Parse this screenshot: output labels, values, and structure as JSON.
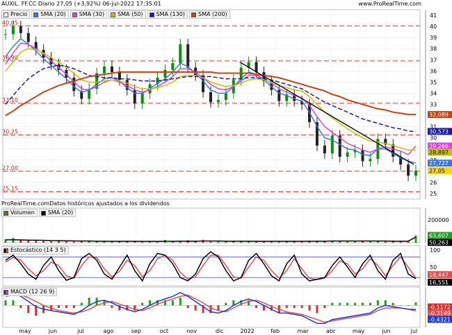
{
  "header": {
    "title": "AUXIL. FF.CC Diario 27,05 (+3,92%) 06-jul-2022 17:35:01",
    "source": "www.ProRealTime.com",
    "note": "ProRealTime.comDatos históricos ajustados a los dividendos"
  },
  "colors": {
    "price_up": "#0a8f0a",
    "price_down": "#222222",
    "sma20": "#3a78e0",
    "sma30": "#e040e0",
    "sma50": "#c8c000",
    "sma130": "#1a1aaa",
    "sma200": "#cc4010",
    "hline": "#e03030",
    "trend": "#000000",
    "volume": "#000000",
    "stoch_k": "#000000",
    "stoch_d": "#e05050",
    "macd": "#1a3adb",
    "macd_signal": "#e05050",
    "hist_up": "#20a020",
    "hist_down": "#d03030"
  },
  "chart_data": [
    {
      "type": "line",
      "panel": "price",
      "legend": [
        "Precio",
        "SMA (20)",
        "SMA (30)",
        "SMA (50)",
        "SMA (130)",
        "SMA (200)"
      ],
      "x_ticks": [
        "may",
        "jun",
        "jul",
        "ago",
        "sep",
        "oct",
        "nov",
        "dic",
        "2022",
        "feb",
        "mar",
        "abr",
        "may",
        "jun",
        "jul"
      ],
      "y_ticks": [
        25,
        26,
        27,
        28,
        29,
        30,
        31,
        32,
        33,
        34,
        35,
        36,
        37,
        38,
        39,
        40,
        41
      ],
      "ylim": [
        24.5,
        41.5
      ],
      "grid": true,
      "horizontal_levels": [
        {
          "label": "40,05",
          "value": 40.05
        },
        {
          "label": "36,90",
          "value": 36.9
        },
        {
          "label": "33,10",
          "value": 33.1
        },
        {
          "label": "30,25",
          "value": 30.25
        },
        {
          "label": "27,00",
          "value": 27.0
        },
        {
          "label": "25,15",
          "value": 25.15
        }
      ],
      "last_values": [
        {
          "label": "32,089",
          "value": 32.089,
          "series": "SMA (200)"
        },
        {
          "label": "30,573",
          "value": 30.573,
          "series": "SMA (130)"
        },
        {
          "label": "29,266",
          "value": 29.266,
          "series": "SMA (30)"
        },
        {
          "label": "28,897",
          "value": 28.897,
          "series": "SMA (50)"
        },
        {
          "label": "27,727",
          "value": 27.727,
          "series": "SMA (20)"
        },
        {
          "label": "27,05",
          "value": 27.05,
          "series": "Precio"
        }
      ],
      "trendline": {
        "from": [
          0.568,
          36.8
        ],
        "to": [
          0.985,
          27.6
        ]
      },
      "series": [
        {
          "name": "Precio",
          "key": "price",
          "values": [
            39.3,
            40.0,
            39.4,
            38.6,
            37.9,
            37.2,
            36.6,
            36.1,
            35.4,
            34.2,
            33.5,
            34.4,
            35.8,
            36.4,
            35.9,
            35.2,
            34.3,
            33.1,
            34.0,
            34.8,
            35.4,
            36.1,
            36.7,
            38.4,
            36.3,
            35.6,
            34.1,
            33.2,
            33.4,
            34.0,
            35.2,
            36.3,
            36.8,
            35.9,
            35.1,
            34.3,
            33.3,
            33.9,
            33.3,
            33.0,
            31.4,
            29.3,
            28.6,
            30.2,
            28.3,
            28.7,
            28.9,
            27.9,
            28.1,
            29.9,
            29.4,
            28.3,
            27.6,
            26.6,
            27.05
          ]
        },
        {
          "name": "SMA (20)",
          "key": "sma20",
          "values": [
            37.3,
            38.2,
            38.9,
            38.4,
            37.8,
            37.1,
            36.5,
            35.9,
            35.3,
            34.6,
            34.1,
            34.3,
            34.8,
            35.3,
            35.4,
            35.1,
            34.5,
            34.0,
            34.0,
            34.4,
            34.9,
            35.3,
            35.9,
            36.7,
            36.4,
            35.8,
            35.1,
            34.3,
            34.0,
            34.0,
            34.6,
            35.3,
            35.9,
            35.7,
            35.2,
            34.6,
            34.0,
            33.8,
            33.5,
            33.3,
            32.3,
            31.0,
            30.0,
            29.8,
            29.4,
            29.0,
            28.9,
            28.5,
            28.4,
            29.0,
            29.0,
            28.6,
            28.2,
            27.9,
            27.727
          ]
        },
        {
          "name": "SMA (30)",
          "key": "sma30",
          "values": [
            36.6,
            37.6,
            38.5,
            38.4,
            38.0,
            37.5,
            36.9,
            36.3,
            35.7,
            35.0,
            34.4,
            34.3,
            34.6,
            35.0,
            35.2,
            35.0,
            34.7,
            34.3,
            34.1,
            34.3,
            34.6,
            35.0,
            35.5,
            36.2,
            36.2,
            35.9,
            35.4,
            34.8,
            34.4,
            34.3,
            34.6,
            35.1,
            35.6,
            35.6,
            35.3,
            34.9,
            34.4,
            34.1,
            33.8,
            33.6,
            32.9,
            31.9,
            31.0,
            30.5,
            30.0,
            29.5,
            29.2,
            28.9,
            28.7,
            29.0,
            29.2,
            29.0,
            28.8,
            28.5,
            29.266
          ]
        },
        {
          "name": "SMA (50)",
          "key": "sma50",
          "values": [
            36.0,
            36.8,
            37.7,
            38.0,
            37.9,
            37.6,
            37.2,
            36.8,
            36.3,
            35.8,
            35.2,
            35.0,
            35.0,
            35.1,
            35.2,
            35.1,
            34.9,
            34.6,
            34.4,
            34.4,
            34.5,
            34.7,
            35.0,
            35.5,
            35.6,
            35.6,
            35.4,
            35.0,
            34.8,
            34.6,
            34.7,
            34.9,
            35.2,
            35.3,
            35.2,
            35.0,
            34.7,
            34.5,
            34.3,
            34.2,
            33.7,
            33.0,
            32.3,
            31.8,
            31.3,
            30.8,
            30.4,
            30.0,
            29.7,
            29.6,
            29.5,
            29.3,
            29.1,
            28.9,
            28.897
          ]
        },
        {
          "name": "SMA (130)",
          "key": "sma130",
          "values": [
            33.0,
            33.8,
            34.6,
            35.3,
            35.8,
            36.2,
            36.4,
            36.5,
            36.4,
            36.2,
            35.9,
            35.6,
            35.5,
            35.4,
            35.4,
            35.3,
            35.3,
            35.2,
            35.1,
            35.1,
            35.1,
            35.2,
            35.3,
            35.4,
            35.5,
            35.5,
            35.5,
            35.5,
            35.4,
            35.3,
            35.3,
            35.3,
            35.4,
            35.4,
            35.3,
            35.2,
            35.0,
            34.8,
            34.6,
            34.4,
            34.0,
            33.6,
            33.2,
            32.9,
            32.6,
            32.3,
            32.0,
            31.7,
            31.5,
            31.3,
            31.1,
            30.9,
            30.8,
            30.6,
            30.573
          ]
        },
        {
          "name": "SMA (200)",
          "key": "sma200",
          "values": [
            32.0,
            32.4,
            32.9,
            33.3,
            33.7,
            34.1,
            34.4,
            34.7,
            34.9,
            35.1,
            35.3,
            35.5,
            35.6,
            35.7,
            35.8,
            35.9,
            35.9,
            35.9,
            35.9,
            35.9,
            35.9,
            35.9,
            35.9,
            35.9,
            35.9,
            35.9,
            35.9,
            35.9,
            35.8,
            35.8,
            35.8,
            35.8,
            35.8,
            35.7,
            35.6,
            35.5,
            35.4,
            35.2,
            35.0,
            34.8,
            34.6,
            34.4,
            34.2,
            33.9,
            33.7,
            33.4,
            33.2,
            33.0,
            32.8,
            32.6,
            32.5,
            32.3,
            32.2,
            32.1,
            32.089
          ]
        }
      ]
    },
    {
      "type": "bar",
      "panel": "volume",
      "legend": [
        "Volumen",
        "SMA (20)"
      ],
      "y_ticks": [
        200000
      ],
      "ylim": [
        0,
        230000
      ],
      "last_values": [
        {
          "label": "63,607",
          "value": 63607,
          "series": "Volumen"
        },
        {
          "label": "50,263",
          "value": 50263,
          "series": "SMA (20)"
        }
      ],
      "values": [
        30000,
        42000,
        25000,
        18000,
        22000,
        15000,
        12000,
        20000,
        14000,
        9000,
        11000,
        16000,
        10000,
        13000,
        8000,
        12000,
        9000,
        14000,
        10000,
        12000,
        8000,
        24000,
        15000,
        18000,
        22000,
        12000,
        26000,
        10000,
        14000,
        9000,
        18000,
        12000,
        16000,
        9000,
        11000,
        15000,
        8000,
        13000,
        18000,
        12000,
        16000,
        10000,
        14000,
        20000,
        15000,
        18000,
        12000,
        14000,
        11000,
        16000,
        13000,
        9000,
        12000,
        10000,
        63607
      ],
      "series": [
        {
          "name": "SMA (20)",
          "values": [
            26000,
            26000,
            25000,
            23000,
            22000,
            21000,
            19000,
            18000,
            17000,
            16000,
            15000,
            15000,
            14000,
            14000,
            13000,
            13000,
            13000,
            13000,
            12000,
            12000,
            12000,
            13000,
            13000,
            14000,
            14000,
            14000,
            15000,
            15000,
            15000,
            14000,
            14000,
            14000,
            14000,
            13000,
            13000,
            13000,
            13000,
            13000,
            13000,
            13000,
            14000,
            14000,
            14000,
            15000,
            15000,
            15000,
            15000,
            15000,
            15000,
            15000,
            15000,
            14000,
            14000,
            14000,
            50263
          ]
        }
      ]
    },
    {
      "type": "line",
      "panel": "stochastic",
      "legend": [
        "Estocástico (14 3 5)"
      ],
      "y_ticks": [
        100,
        50
      ],
      "ylim": [
        0,
        105
      ],
      "levels": [
        80,
        20
      ],
      "last_values": [
        {
          "label": "18,447",
          "value": 18.447,
          "series": "%D"
        },
        {
          "label": "16,551",
          "value": 16.551,
          "series": "%K"
        }
      ],
      "series": [
        {
          "name": "%K",
          "key": "stoch_k",
          "values": [
            70,
            85,
            60,
            30,
            15,
            55,
            80,
            40,
            12,
            20,
            75,
            90,
            70,
            30,
            15,
            50,
            85,
            40,
            10,
            60,
            90,
            85,
            60,
            20,
            10,
            30,
            75,
            95,
            80,
            40,
            10,
            20,
            70,
            90,
            60,
            25,
            10,
            60,
            85,
            30,
            10,
            15,
            20,
            55,
            80,
            50,
            20,
            60,
            85,
            40,
            15,
            70,
            90,
            30,
            16.551
          ]
        },
        {
          "name": "%D",
          "key": "stoch_d",
          "values": [
            65,
            78,
            70,
            45,
            25,
            40,
            65,
            55,
            25,
            18,
            55,
            80,
            78,
            45,
            22,
            38,
            70,
            55,
            22,
            40,
            75,
            85,
            70,
            35,
            15,
            22,
            55,
            85,
            85,
            55,
            22,
            18,
            50,
            80,
            70,
            40,
            18,
            40,
            75,
            45,
            18,
            14,
            18,
            40,
            68,
            60,
            30,
            45,
            75,
            55,
            25,
            55,
            80,
            50,
            18.447
          ]
        }
      ]
    },
    {
      "type": "line",
      "panel": "macd",
      "legend": [
        "MACD (12 26 9)"
      ],
      "last_values": [
        {
          "label": "-0,1172",
          "value": -0.1172,
          "series": "Histograma"
        },
        {
          "label": "-0,3149",
          "value": -0.3149,
          "series": "MACD"
        },
        {
          "label": "-0,4321",
          "value": -0.4321,
          "series": "Señal"
        }
      ],
      "ylim": [
        -1.6,
        1.2
      ],
      "series": [
        {
          "name": "MACD",
          "key": "macd",
          "values": [
            0.9,
            1.0,
            0.7,
            0.3,
            -0.1,
            -0.3,
            -0.4,
            -0.5,
            -0.6,
            -0.7,
            -0.4,
            0.0,
            0.3,
            0.4,
            0.2,
            -0.1,
            -0.3,
            -0.5,
            -0.3,
            0.0,
            0.3,
            0.5,
            0.7,
            1.0,
            0.7,
            0.3,
            -0.1,
            -0.5,
            -0.6,
            -0.4,
            0.0,
            0.3,
            0.5,
            0.3,
            0.0,
            -0.3,
            -0.6,
            -0.6,
            -0.7,
            -0.8,
            -1.1,
            -1.4,
            -1.4,
            -1.1,
            -1.0,
            -0.9,
            -0.8,
            -0.7,
            -0.6,
            -0.2,
            0.0,
            -0.1,
            -0.2,
            -0.3,
            -0.3149
          ]
        },
        {
          "name": "Señal",
          "key": "macd_signal",
          "values": [
            0.7,
            0.8,
            0.8,
            0.6,
            0.3,
            0.0,
            -0.2,
            -0.4,
            -0.5,
            -0.6,
            -0.5,
            -0.3,
            0.0,
            0.2,
            0.3,
            0.1,
            -0.1,
            -0.3,
            -0.4,
            -0.2,
            0.1,
            0.3,
            0.5,
            0.7,
            0.8,
            0.5,
            0.2,
            -0.2,
            -0.4,
            -0.5,
            -0.2,
            0.1,
            0.3,
            0.4,
            0.2,
            -0.1,
            -0.3,
            -0.5,
            -0.6,
            -0.7,
            -0.9,
            -1.1,
            -1.3,
            -1.2,
            -1.1,
            -1.0,
            -0.9,
            -0.8,
            -0.7,
            -0.4,
            -0.2,
            -0.2,
            -0.2,
            -0.3,
            -0.4321
          ]
        }
      ]
    }
  ]
}
